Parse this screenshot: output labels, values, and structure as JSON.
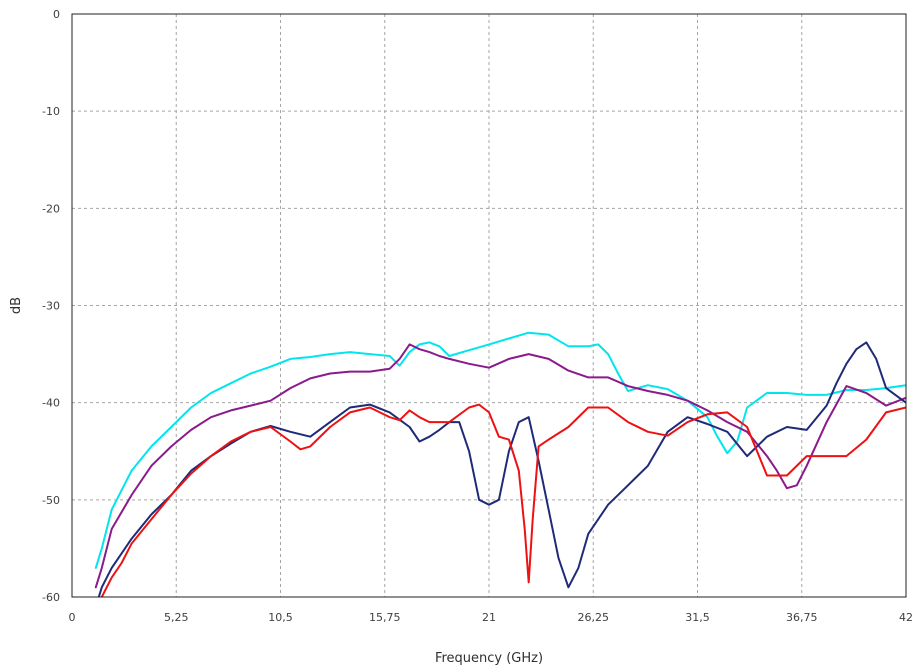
{
  "chart_data": {
    "type": "line",
    "title": "",
    "xlabel": "Frequency (GHz)",
    "ylabel": "dB",
    "xlim": [
      0,
      42
    ],
    "ylim": [
      -60,
      0
    ],
    "grid": true,
    "legend": "none",
    "x_ticks": [
      0,
      5.25,
      10.5,
      15.75,
      21,
      26.25,
      31.5,
      36.75,
      42
    ],
    "x_tick_labels": [
      "0",
      "5,25",
      "10,5",
      "15,75",
      "21",
      "26,25",
      "31,5",
      "36,75",
      "42"
    ],
    "y_ticks": [
      0,
      -10,
      -20,
      -30,
      -40,
      -50,
      -60
    ],
    "y_tick_labels": [
      "0",
      "-10",
      "-20",
      "-30",
      "-40",
      "-50",
      "-60"
    ],
    "series": [
      {
        "color": "#00e5ee",
        "x": [
          1.2,
          1.5,
          2,
          3,
          4,
          5,
          6,
          7,
          8,
          9,
          10,
          11,
          12,
          13,
          14,
          15,
          16,
          16.5,
          17,
          17.5,
          18,
          18.5,
          19,
          20,
          21,
          22,
          23,
          24,
          25,
          26,
          26.5,
          27,
          27.5,
          28,
          29,
          30,
          31,
          32,
          32.5,
          33,
          33.5,
          34,
          35,
          36,
          37,
          38,
          39,
          40,
          41,
          42
        ],
        "y": [
          -57,
          -55,
          -51,
          -47,
          -44.5,
          -42.5,
          -40.5,
          -39,
          -38,
          -37,
          -36.3,
          -35.5,
          -35.3,
          -35,
          -34.8,
          -35,
          -35.2,
          -36.2,
          -34.8,
          -34,
          -33.8,
          -34.2,
          -35.2,
          -34.6,
          -34,
          -33.4,
          -32.8,
          -33,
          -34.2,
          -34.2,
          -34,
          -35,
          -37,
          -38.8,
          -38.2,
          -38.6,
          -39.8,
          -41.5,
          -43.5,
          -45.2,
          -44,
          -40.5,
          -39,
          -39,
          -39.2,
          -39.2,
          -38.7,
          -38.7,
          -38.5,
          -38.2
        ]
      },
      {
        "color": "#8b1a8b",
        "x": [
          1.2,
          1.5,
          2,
          3,
          4,
          5,
          6,
          7,
          8,
          9,
          10,
          11,
          12,
          13,
          14,
          15,
          16,
          16.5,
          17,
          17.5,
          18,
          18.5,
          19,
          20,
          21,
          22,
          23,
          24,
          25,
          26,
          27,
          28,
          29,
          30,
          31,
          32,
          33,
          34,
          35,
          35.5,
          36,
          36.5,
          37,
          38,
          39,
          40,
          41,
          42
        ],
        "y": [
          -59,
          -57,
          -53,
          -49.5,
          -46.5,
          -44.5,
          -42.8,
          -41.5,
          -40.8,
          -40.3,
          -39.8,
          -38.5,
          -37.5,
          -37,
          -36.8,
          -36.8,
          -36.5,
          -35.5,
          -34,
          -34.5,
          -34.8,
          -35.2,
          -35.5,
          -36,
          -36.4,
          -35.5,
          -35,
          -35.5,
          -36.7,
          -37.4,
          -37.4,
          -38.3,
          -38.8,
          -39.2,
          -39.8,
          -40.8,
          -42,
          -43,
          -45.5,
          -47,
          -48.8,
          -48.5,
          -46.5,
          -42,
          -38.3,
          -39,
          -40.3,
          -39.5
        ]
      },
      {
        "color": "#1f2a78",
        "x": [
          1.2,
          1.5,
          2,
          3,
          4,
          5,
          6,
          7,
          8,
          9,
          10,
          11,
          12,
          13,
          14,
          15,
          16,
          17,
          17.5,
          18,
          18.5,
          19,
          19.5,
          20,
          20.5,
          21,
          21.5,
          22,
          22.5,
          23,
          23.5,
          24,
          24.5,
          25,
          25.5,
          26,
          26.5,
          27,
          28,
          29,
          30,
          31,
          32,
          33,
          34,
          35,
          36,
          37,
          38,
          38.5,
          39,
          39.5,
          40,
          40.5,
          41,
          42
        ],
        "y": [
          -61,
          -59,
          -57,
          -54,
          -51.5,
          -49.5,
          -47,
          -45.5,
          -44.2,
          -43,
          -42.4,
          -43,
          -43.5,
          -42,
          -40.5,
          -40.2,
          -41,
          -42.5,
          -44,
          -43.5,
          -42.8,
          -42,
          -42,
          -45,
          -50,
          -50.5,
          -50,
          -45,
          -42,
          -41.5,
          -46,
          -51,
          -56,
          -59,
          -57,
          -53.5,
          -52,
          -50.5,
          -48.5,
          -46.5,
          -43,
          -41.5,
          -42.2,
          -43,
          -45.5,
          -43.5,
          -42.5,
          -42.8,
          -40.3,
          -38,
          -36,
          -34.5,
          -33.8,
          -35.5,
          -38.5,
          -40
        ]
      },
      {
        "color": "#ee1111",
        "x": [
          1.2,
          1.5,
          2,
          2.5,
          3,
          4,
          5,
          6,
          7,
          8,
          9,
          10,
          11,
          11.5,
          12,
          13,
          14,
          15,
          16,
          16.5,
          17,
          17.5,
          18,
          19,
          20,
          20.5,
          21,
          21.5,
          22,
          22.5,
          22.8,
          23,
          23.2,
          23.5,
          24,
          25,
          26,
          27,
          28,
          29,
          30,
          31,
          32,
          33,
          34,
          35,
          36,
          37,
          38,
          39,
          40,
          41,
          42
        ],
        "y": [
          -62,
          -60,
          -58,
          -56.5,
          -54.5,
          -52,
          -49.5,
          -47.3,
          -45.5,
          -44,
          -43,
          -42.5,
          -44,
          -44.8,
          -44.5,
          -42.5,
          -41,
          -40.5,
          -41.5,
          -41.8,
          -40.8,
          -41.5,
          -42,
          -42,
          -40.5,
          -40.2,
          -41,
          -43.5,
          -43.8,
          -47,
          -53,
          -58.5,
          -52,
          -44.5,
          -43.8,
          -42.5,
          -40.5,
          -40.5,
          -42,
          -43,
          -43.4,
          -42,
          -41.2,
          -41,
          -42.5,
          -47.5,
          -47.5,
          -45.5,
          -45.5,
          -45.5,
          -43.8,
          -41,
          -40.5
        ]
      }
    ]
  }
}
